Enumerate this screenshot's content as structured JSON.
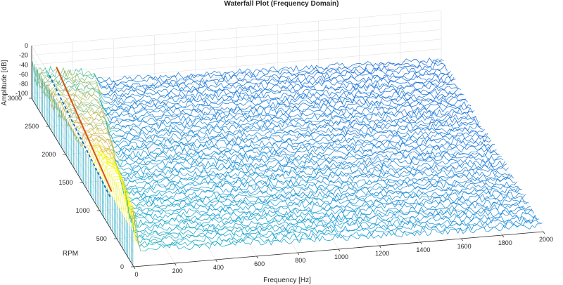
{
  "chart_data": {
    "type": "waterfall",
    "title": "Waterfall Plot (Frequency Domain)",
    "xlabel": "Frequency [Hz]",
    "ylabel": "RPM",
    "zlabel": "Amplitude [dB]",
    "xlim": [
      0,
      2000
    ],
    "ylim": [
      0,
      3000
    ],
    "zlim": [
      -110,
      0
    ],
    "x_ticks": [
      "0",
      "200",
      "400",
      "600",
      "800",
      "1000",
      "1200",
      "1400",
      "1600",
      "1800",
      "2000"
    ],
    "y_ticks": [
      "0",
      "500",
      "1000",
      "1500",
      "2000",
      "2500",
      "3000"
    ],
    "z_ticks": [
      "0",
      "-20",
      "-40",
      "-60",
      "-80",
      "-100"
    ],
    "grid": true,
    "colormap": "parula",
    "rpm_traces": 60,
    "order_lines": [
      1,
      2,
      3,
      4,
      5,
      6,
      7,
      8,
      9,
      10
    ],
    "order_line_colors": [
      "#d95319",
      "#0072bd"
    ]
  }
}
